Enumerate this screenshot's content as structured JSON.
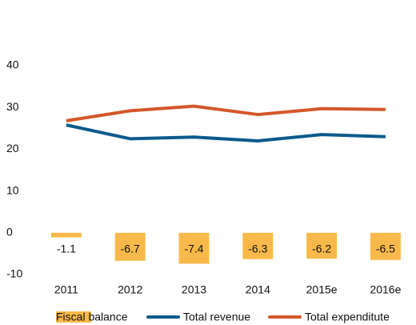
{
  "chart_data": {
    "type": "bar-line",
    "categories": [
      "2011",
      "2012",
      "2013",
      "2014",
      "2015e",
      "2016e"
    ],
    "series": [
      {
        "name": "Fiscal balance",
        "type": "bar",
        "color": "#f9b94a",
        "values": [
          -1.1,
          -6.7,
          -7.4,
          -6.3,
          -6.2,
          -6.5
        ]
      },
      {
        "name": "Total revenue",
        "type": "line",
        "color": "#0b5a8c",
        "values": [
          25.8,
          22.5,
          22.9,
          22.0,
          23.5,
          23.0
        ]
      },
      {
        "name": "Total expenditute",
        "type": "line",
        "color": "#d4572a",
        "values": [
          26.8,
          29.2,
          30.3,
          28.3,
          29.7,
          29.5
        ]
      }
    ],
    "ylim": [
      -10,
      40
    ],
    "yticks": [
      -10,
      0,
      10,
      20,
      30,
      40
    ],
    "grid": false,
    "legend": "bottom"
  }
}
